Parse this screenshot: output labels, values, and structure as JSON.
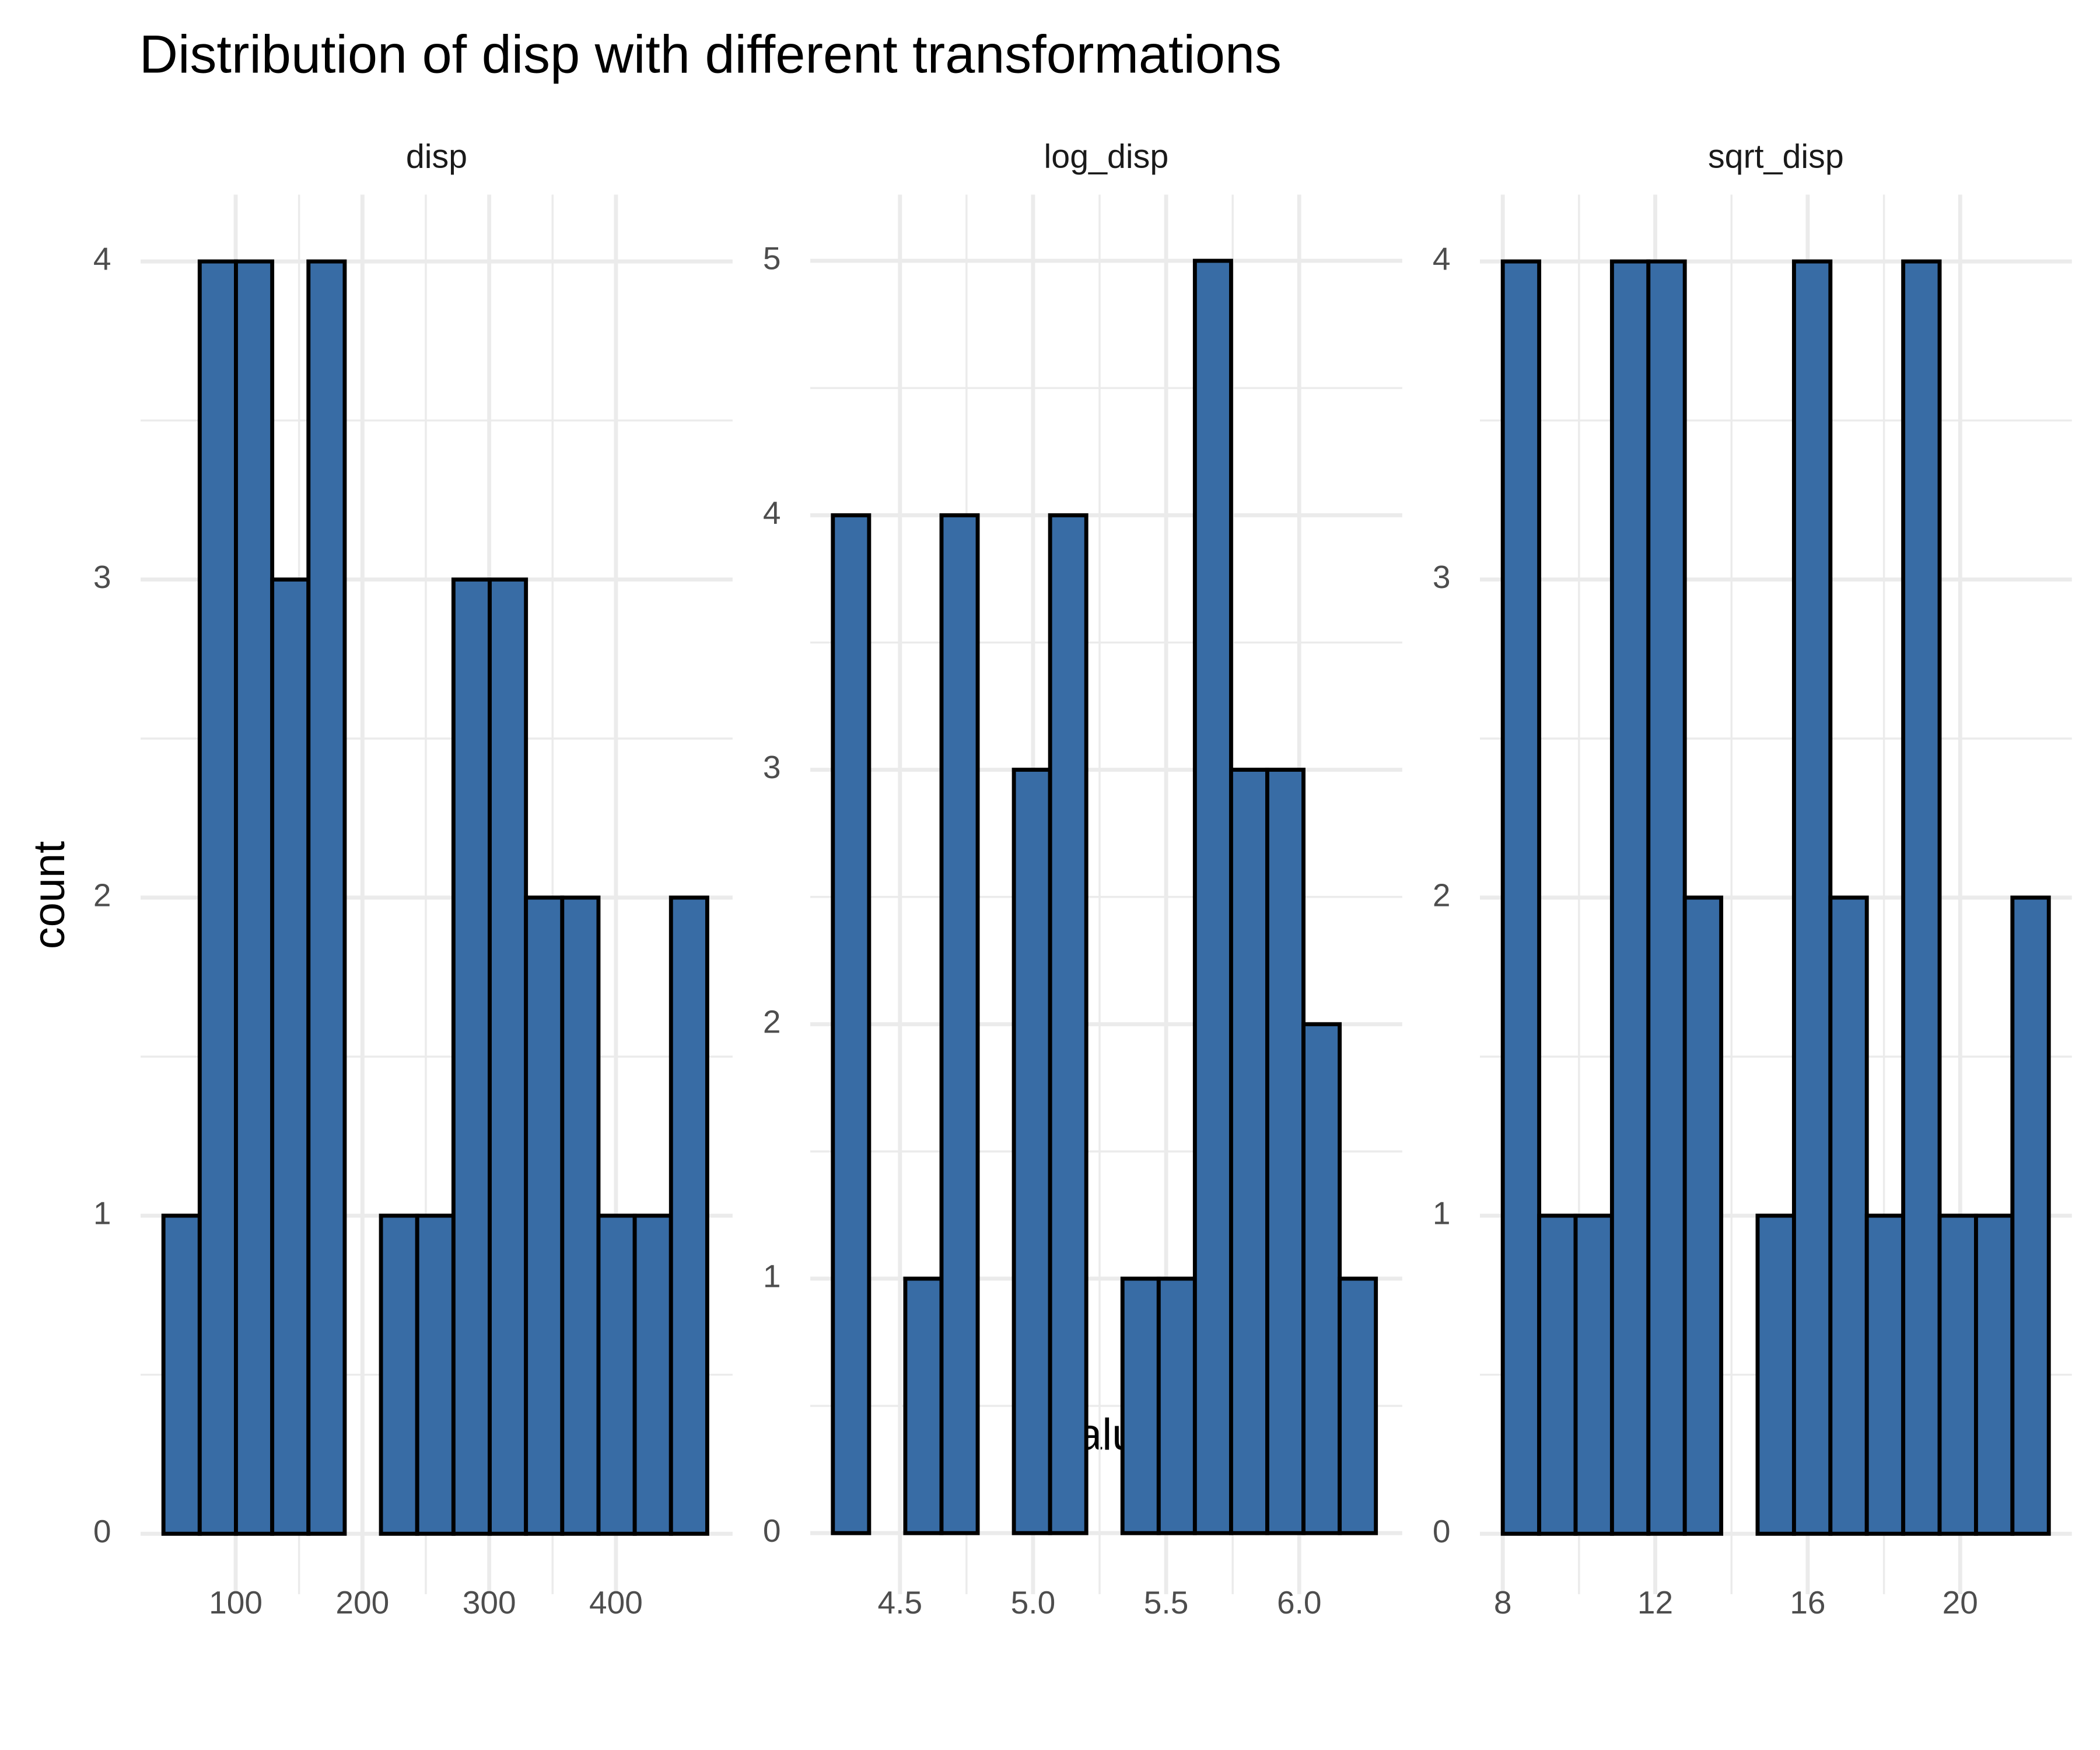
{
  "title": "Distribution of disp with different transformations",
  "x_label": "Value",
  "y_label": "count",
  "chart_data": [
    {
      "type": "histogram",
      "title": "disp",
      "color": "#386ca5",
      "bins": [
        43.0,
        71.6,
        100.2,
        128.8,
        157.4,
        186.0,
        214.6,
        243.2,
        271.8,
        300.4,
        329.0,
        357.6,
        386.2,
        414.8,
        443.4,
        472.0
      ],
      "values": [
        1,
        4,
        4,
        3,
        4,
        0,
        1,
        1,
        3,
        3,
        2,
        2,
        1,
        1,
        2
      ],
      "xlim": [
        25,
        492
      ],
      "xticks": [
        100,
        200,
        300,
        400
      ],
      "ylim": [
        -0.19,
        4.21
      ],
      "yticks": [
        0,
        1,
        2,
        3,
        4
      ],
      "grid": true
    },
    {
      "type": "histogram",
      "title": "log_disp",
      "color": "#386ca5",
      "bins": [
        4.248,
        4.384,
        4.52,
        4.656,
        4.792,
        4.928,
        5.064,
        5.2,
        5.336,
        5.472,
        5.608,
        5.744,
        5.88,
        6.016,
        6.152,
        6.288
      ],
      "values": [
        4,
        0,
        1,
        4,
        0,
        3,
        4,
        0,
        1,
        1,
        5,
        3,
        3,
        2,
        1
      ],
      "xlim": [
        4.163,
        6.387
      ],
      "xticks": [
        {
          "value": 4.5,
          "label": "4.5"
        },
        {
          "value": 5,
          "label": "5.0"
        },
        {
          "value": 5.5,
          "label": "5.5"
        },
        {
          "value": 6,
          "label": "6.0"
        }
      ],
      "ylim": [
        -0.24,
        5.26
      ],
      "yticks": [
        0,
        1,
        2,
        3,
        4,
        5
      ],
      "grid": true
    },
    {
      "type": "histogram",
      "title": "sqrt_disp",
      "color": "#386ca5",
      "bins": [
        8.0,
        8.955,
        9.91,
        10.865,
        11.82,
        12.775,
        13.73,
        14.685,
        15.64,
        16.595,
        17.55,
        18.505,
        19.46,
        20.415,
        21.37,
        22.325
      ],
      "values": [
        4,
        1,
        1,
        4,
        4,
        2,
        0,
        1,
        4,
        2,
        1,
        4,
        1,
        1,
        2
      ],
      "xlim": [
        7.4,
        22.93
      ],
      "xticks": [
        8,
        12,
        16,
        20
      ],
      "ylim": [
        -0.19,
        4.21
      ],
      "yticks": [
        0,
        1,
        2,
        3,
        4
      ],
      "grid": true
    }
  ]
}
